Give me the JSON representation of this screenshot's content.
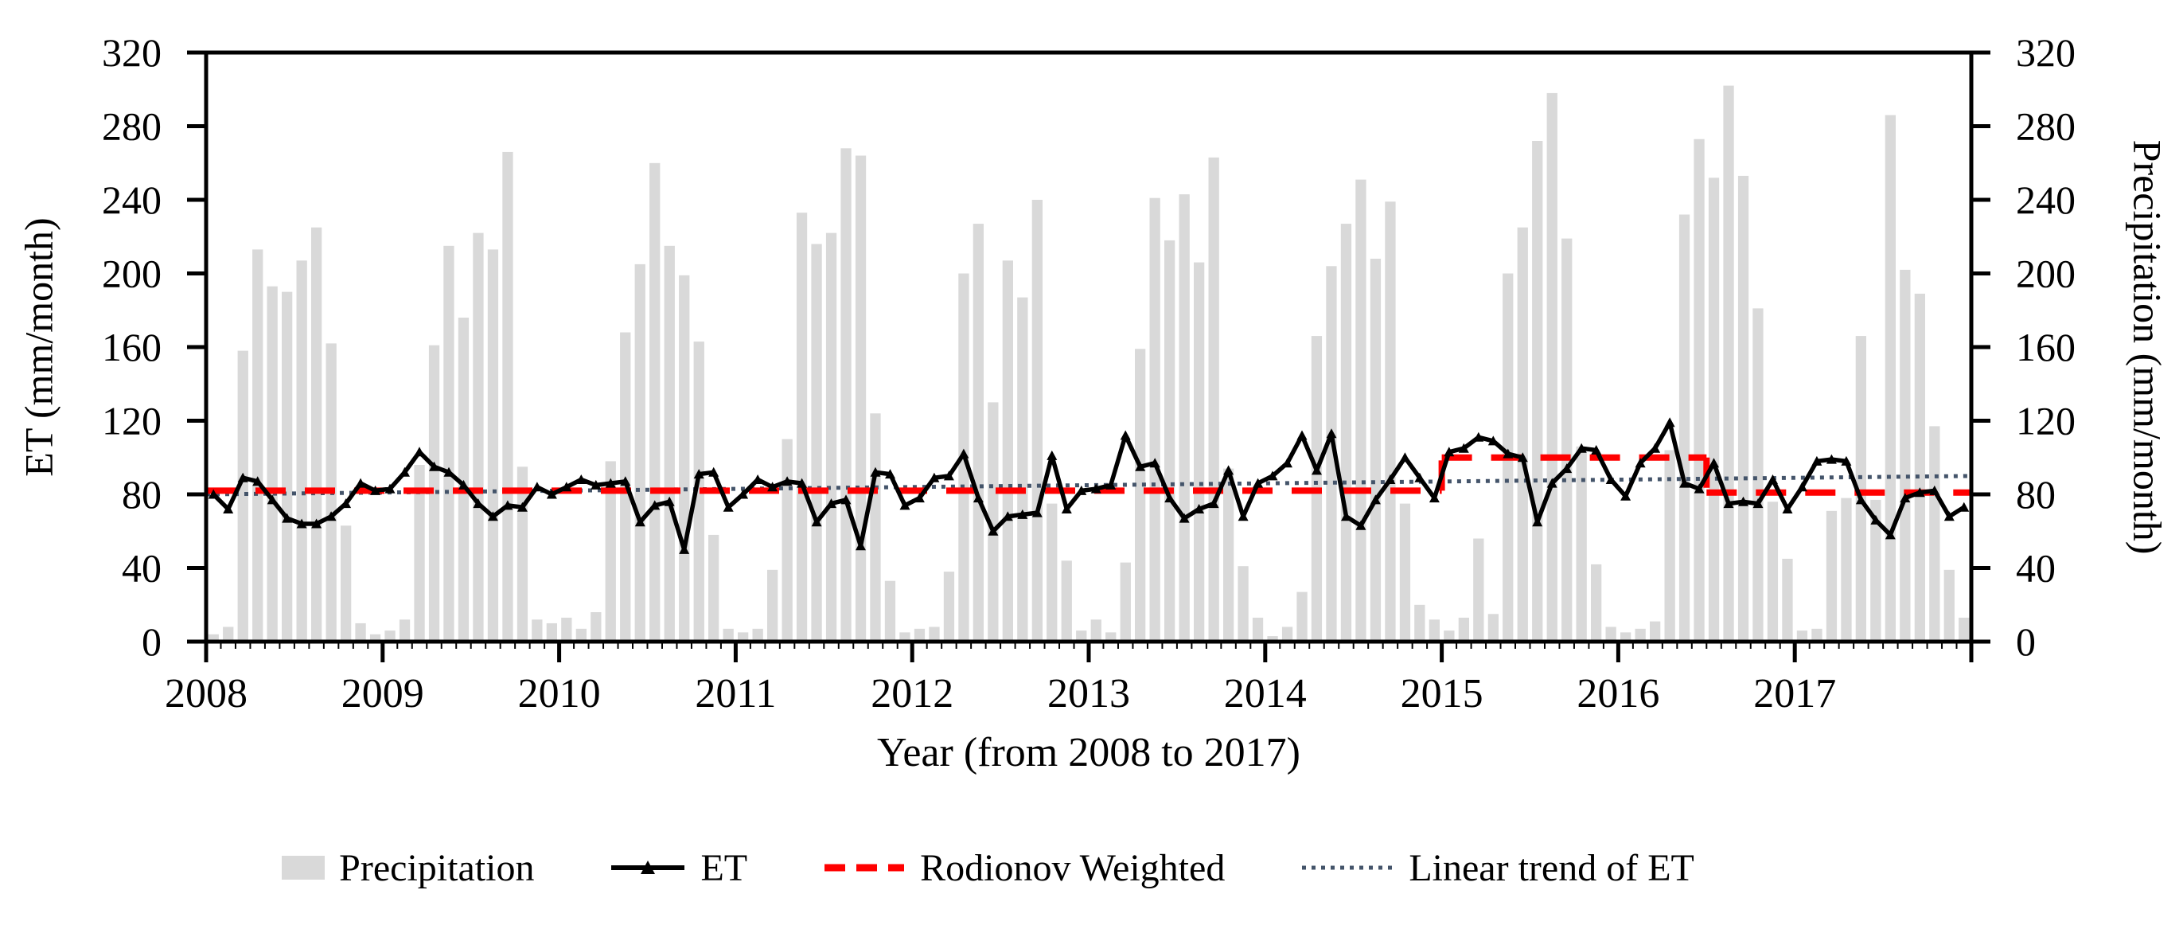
{
  "figure": {
    "x_axis_title": "Year (from 2008 to 2017)"
  },
  "legend": {
    "items": [
      {
        "key": "precipitation",
        "label": "Precipitation",
        "swatch": "gray-bar-swatch"
      },
      {
        "key": "et",
        "label": "ET",
        "swatch": "black-line-triangle-marker"
      },
      {
        "key": "rodionov",
        "label": "Rodionov Weighted",
        "swatch": "red-dashed-line"
      },
      {
        "key": "trend",
        "label": "Linear trend of ET",
        "swatch": "navy-dotted-line"
      }
    ]
  },
  "chart_data": {
    "type": "combo-bar-line",
    "x_label": "Year (from 2008 to 2017)",
    "x_years": [
      2008,
      2009,
      2010,
      2011,
      2012,
      2013,
      2014,
      2015,
      2016,
      2017
    ],
    "months_per_year": 12,
    "y_left": {
      "label": "ET (mm/month)",
      "min": 0,
      "max": 320,
      "step": 40
    },
    "y_right": {
      "label": "Precipitation (mm/month)",
      "min": 0,
      "max": 320,
      "step": 40
    },
    "grid": false,
    "legend_position": "bottom",
    "precipitation_monthly": {
      "2008": [
        4,
        8,
        158,
        213,
        193,
        190,
        207,
        225,
        162,
        63,
        10,
        4
      ],
      "2009": [
        6,
        12,
        96,
        161,
        215,
        176,
        222,
        213,
        266,
        95,
        12,
        10
      ],
      "2010": [
        13,
        7,
        16,
        98,
        168,
        205,
        260,
        215,
        199,
        163,
        58,
        7
      ],
      "2011": [
        5,
        7,
        39,
        110,
        233,
        216,
        222,
        268,
        264,
        124,
        33,
        5
      ],
      "2012": [
        7,
        8,
        38,
        200,
        227,
        130,
        207,
        187,
        240,
        75,
        44,
        6
      ],
      "2013": [
        12,
        5,
        43,
        159,
        241,
        218,
        243,
        206,
        263,
        94,
        41,
        13
      ],
      "2014": [
        3,
        8,
        27,
        166,
        204,
        227,
        251,
        208,
        239,
        75,
        20,
        12
      ],
      "2015": [
        6,
        13,
        56,
        15,
        200,
        225,
        272,
        298,
        219,
        106,
        42,
        8
      ],
      "2016": [
        5,
        7,
        11,
        104,
        232,
        273,
        252,
        302,
        253,
        181,
        76,
        45
      ],
      "2017": [
        6,
        7,
        71,
        78,
        166,
        77,
        286,
        202,
        189,
        117,
        39,
        13
      ]
    },
    "et_monthly": {
      "2008": [
        80,
        72,
        89,
        87,
        77,
        67,
        64,
        64,
        68,
        75,
        86,
        82
      ],
      "2009": [
        83,
        92,
        103,
        95,
        92,
        85,
        75,
        68,
        74,
        73,
        84,
        80
      ],
      "2010": [
        84,
        88,
        85,
        86,
        87,
        65,
        74,
        76,
        50,
        91,
        92,
        73
      ],
      "2011": [
        80,
        88,
        84,
        87,
        86,
        65,
        75,
        77,
        52,
        92,
        91,
        74
      ],
      "2012": [
        78,
        89,
        90,
        102,
        78,
        60,
        68,
        69,
        70,
        101,
        72,
        82
      ],
      "2013": [
        83,
        85,
        112,
        95,
        97,
        78,
        67,
        72,
        75,
        93,
        68,
        86
      ],
      "2014": [
        90,
        97,
        112,
        93,
        113,
        68,
        63,
        77,
        88,
        100,
        89,
        78
      ],
      "2015": [
        103,
        105,
        111,
        109,
        102,
        100,
        65,
        86,
        94,
        105,
        104,
        88
      ],
      "2016": [
        79,
        97,
        105,
        119,
        86,
        83,
        97,
        75,
        76,
        75,
        88,
        72
      ],
      "2017": [
        84,
        98,
        99,
        98,
        77,
        66,
        58,
        78,
        81,
        82,
        68,
        73
      ]
    },
    "rodionov_weighted": {
      "style": "red-dashed-step-line",
      "segments": [
        {
          "start": "2008-01",
          "end": "2014-12",
          "value": 82
        },
        {
          "start": "2015-01",
          "end": "2016-06",
          "value": 100
        },
        {
          "start": "2016-07",
          "end": "2017-12",
          "value": 81
        }
      ]
    },
    "linear_trend_of_et": {
      "style": "navy-dotted-line",
      "start_value": 80,
      "end_value": 90
    },
    "colors": {
      "precipitation_bar": "#D9D9D9",
      "et_line": "#000000",
      "rodionov_line": "#FF0000",
      "trend_line": "#44546A",
      "axis": "#000000",
      "background": "#FFFFFF"
    }
  }
}
